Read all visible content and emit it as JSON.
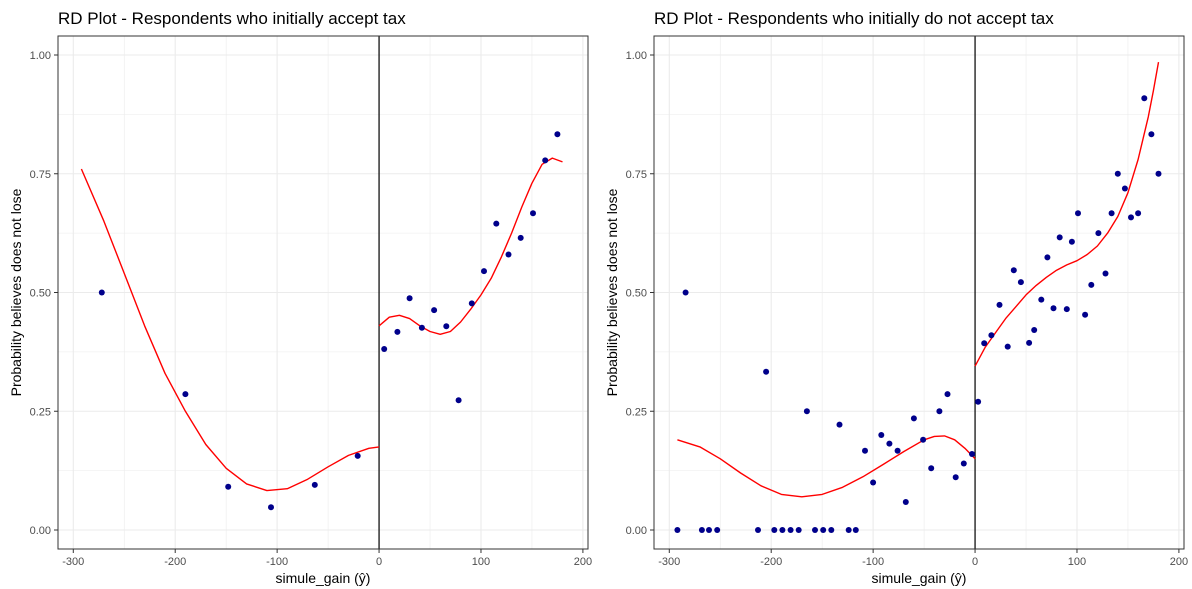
{
  "colors": {
    "points": "#00008B",
    "fit": "#FF0000",
    "cutoff": "#000000",
    "grid": "#EBEBEB",
    "panel_border": "#333333"
  },
  "chart_data": [
    {
      "type": "scatter",
      "title": "RD Plot - Respondents who initially accept tax",
      "xlabel": "simule_gain (ŷ)",
      "ylabel": "Probability believes does not lose",
      "xlim": [
        -315,
        205
      ],
      "ylim": [
        -0.04,
        1.04
      ],
      "xticks": [
        -300,
        -200,
        -100,
        0,
        100,
        200
      ],
      "yticks": [
        0.0,
        0.25,
        0.5,
        0.75,
        1.0
      ],
      "xtick_labels": [
        "-300",
        "-200",
        "-100",
        "0",
        "100",
        "200"
      ],
      "ytick_labels": [
        "0.00",
        "0.25",
        "0.50",
        "0.75",
        "1.00"
      ],
      "cutoff": 0,
      "grid": true,
      "points": {
        "x": [
          -272,
          -190,
          -148,
          -106,
          -63,
          -21,
          5,
          18,
          30,
          42,
          54,
          66,
          78,
          91,
          103,
          115,
          127,
          139,
          151,
          163,
          175
        ],
        "y": [
          0.5,
          0.286,
          0.091,
          0.048,
          0.095,
          0.156,
          0.381,
          0.417,
          0.488,
          0.426,
          0.463,
          0.429,
          0.273,
          0.477,
          0.545,
          0.645,
          0.58,
          0.615,
          0.667,
          0.778,
          0.833
        ]
      },
      "fit_left": {
        "x": [
          -292,
          -270,
          -250,
          -230,
          -210,
          -190,
          -170,
          -150,
          -130,
          -110,
          -90,
          -70,
          -50,
          -30,
          -10,
          0
        ],
        "y": [
          0.76,
          0.65,
          0.54,
          0.43,
          0.33,
          0.25,
          0.18,
          0.13,
          0.097,
          0.083,
          0.087,
          0.107,
          0.133,
          0.157,
          0.172,
          0.175
        ]
      },
      "fit_right": {
        "x": [
          0,
          10,
          20,
          30,
          40,
          50,
          60,
          70,
          80,
          90,
          100,
          110,
          120,
          130,
          140,
          150,
          160,
          170,
          180
        ],
        "y": [
          0.43,
          0.448,
          0.452,
          0.445,
          0.43,
          0.418,
          0.412,
          0.418,
          0.438,
          0.465,
          0.495,
          0.53,
          0.575,
          0.625,
          0.68,
          0.73,
          0.77,
          0.783,
          0.775
        ]
      }
    },
    {
      "type": "scatter",
      "title": "RD Plot - Respondents who initially do not accept tax",
      "xlabel": "simule_gain (ŷ)",
      "ylabel": "Probability believes does not lose",
      "xlim": [
        -315,
        205
      ],
      "ylim": [
        -0.04,
        1.04
      ],
      "xticks": [
        -300,
        -200,
        -100,
        0,
        100,
        200
      ],
      "yticks": [
        0.0,
        0.25,
        0.5,
        0.75,
        1.0
      ],
      "xtick_labels": [
        "-300",
        "-200",
        "-100",
        "0",
        "100",
        "200"
      ],
      "ytick_labels": [
        "0.00",
        "0.25",
        "0.50",
        "0.75",
        "1.00"
      ],
      "cutoff": 0,
      "grid": true,
      "points": {
        "x": [
          -292,
          -284,
          -268,
          -261,
          -253,
          -213,
          -205,
          -197,
          -189,
          -181,
          -173,
          -165,
          -157,
          -149,
          -141,
          -133,
          -124,
          -117,
          -108,
          -100,
          -92,
          -84,
          -76,
          -68,
          -60,
          -51,
          -43,
          -35,
          -27,
          -19,
          -11,
          -3,
          3,
          9,
          16,
          24,
          32,
          38,
          45,
          53,
          58,
          65,
          71,
          77,
          83,
          90,
          95,
          101,
          108,
          114,
          121,
          128,
          134,
          140,
          147,
          153,
          160,
          166,
          173,
          180
        ],
        "y": [
          0.0,
          0.5,
          0.0,
          0.0,
          0.0,
          0.0,
          0.333,
          0.0,
          0.0,
          0.0,
          0.0,
          0.25,
          0.0,
          0.0,
          0.0,
          0.222,
          0.0,
          0.0,
          0.167,
          0.1,
          0.2,
          0.182,
          0.167,
          0.059,
          0.235,
          0.19,
          0.13,
          0.25,
          0.286,
          0.111,
          0.14,
          0.16,
          0.27,
          0.393,
          0.41,
          0.474,
          0.386,
          0.547,
          0.522,
          0.394,
          0.421,
          0.485,
          0.574,
          0.467,
          0.616,
          0.465,
          0.607,
          0.667,
          0.453,
          0.516,
          0.625,
          0.54,
          0.667,
          0.75,
          0.719,
          0.658,
          0.667,
          0.909,
          0.833,
          0.75
        ]
      },
      "fit_left": {
        "x": [
          -292,
          -270,
          -250,
          -230,
          -210,
          -190,
          -170,
          -150,
          -130,
          -110,
          -90,
          -70,
          -50,
          -40,
          -30,
          -20,
          -10,
          0
        ],
        "y": [
          0.19,
          0.175,
          0.15,
          0.12,
          0.093,
          0.075,
          0.07,
          0.075,
          0.09,
          0.112,
          0.138,
          0.165,
          0.19,
          0.197,
          0.198,
          0.19,
          0.172,
          0.15
        ]
      },
      "fit_right": {
        "x": [
          0,
          10,
          20,
          30,
          40,
          50,
          60,
          70,
          80,
          90,
          100,
          110,
          120,
          130,
          140,
          150,
          160,
          170,
          175,
          180
        ],
        "y": [
          0.345,
          0.385,
          0.415,
          0.445,
          0.47,
          0.495,
          0.515,
          0.532,
          0.547,
          0.558,
          0.567,
          0.58,
          0.598,
          0.625,
          0.66,
          0.71,
          0.78,
          0.87,
          0.925,
          0.985
        ]
      }
    }
  ]
}
